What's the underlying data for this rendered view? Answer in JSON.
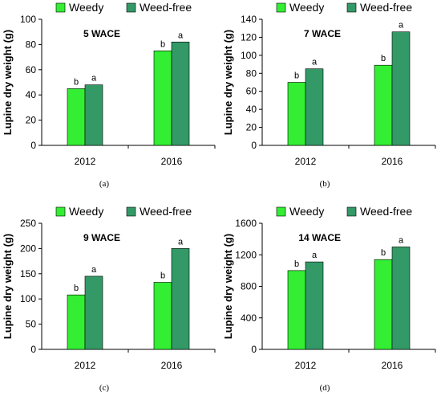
{
  "colors": {
    "weedy": "#33ee33",
    "weed_free": "#339966",
    "axis": "#000000"
  },
  "chart_data": [
    {
      "type": "bar",
      "panel_label": "(a)",
      "title": "5 WACE",
      "ylabel": "Lupine dry weight (g)",
      "xlabel": "",
      "categories": [
        "2012",
        "2016"
      ],
      "ylim": [
        0,
        100
      ],
      "yticks": [
        0,
        20,
        40,
        60,
        80,
        100
      ],
      "legend": "top",
      "series": [
        {
          "name": "Weedy",
          "values": [
            45,
            75
          ],
          "letters": [
            "b",
            "b"
          ]
        },
        {
          "name": "Weed-free",
          "values": [
            48,
            82
          ],
          "letters": [
            "a",
            "a"
          ]
        }
      ]
    },
    {
      "type": "bar",
      "panel_label": "(b)",
      "title": "7 WACE",
      "ylabel": "Lupine dry weight (g)",
      "xlabel": "",
      "categories": [
        "2012",
        "2016"
      ],
      "ylim": [
        0,
        140
      ],
      "yticks": [
        0,
        20,
        40,
        60,
        80,
        100,
        120,
        140
      ],
      "legend": "top",
      "series": [
        {
          "name": "Weedy",
          "values": [
            70,
            89
          ],
          "letters": [
            "b",
            "b"
          ]
        },
        {
          "name": "Weed-free",
          "values": [
            85,
            126
          ],
          "letters": [
            "a",
            "a"
          ]
        }
      ]
    },
    {
      "type": "bar",
      "panel_label": "(c)",
      "title": "9 WACE",
      "ylabel": "Lupine dry weight (g)",
      "xlabel": "",
      "categories": [
        "2012",
        "2016"
      ],
      "ylim": [
        0,
        250
      ],
      "yticks": [
        0,
        50,
        100,
        150,
        200,
        250
      ],
      "legend": "top",
      "series": [
        {
          "name": "Weedy",
          "values": [
            108,
            133
          ],
          "letters": [
            "b",
            "b"
          ]
        },
        {
          "name": "Weed-free",
          "values": [
            145,
            200
          ],
          "letters": [
            "a",
            "a"
          ]
        }
      ]
    },
    {
      "type": "bar",
      "panel_label": "(d)",
      "title": "14 WACE",
      "ylabel": "Lupine dry weight (g)",
      "xlabel": "",
      "categories": [
        "2012",
        "2016"
      ],
      "ylim": [
        0,
        1600
      ],
      "yticks": [
        0,
        400,
        800,
        1200,
        1600
      ],
      "legend": "top",
      "series": [
        {
          "name": "Weedy",
          "values": [
            1000,
            1140
          ],
          "letters": [
            "b",
            "b"
          ]
        },
        {
          "name": "Weed-free",
          "values": [
            1110,
            1300
          ],
          "letters": [
            "a",
            "a"
          ]
        }
      ]
    }
  ]
}
